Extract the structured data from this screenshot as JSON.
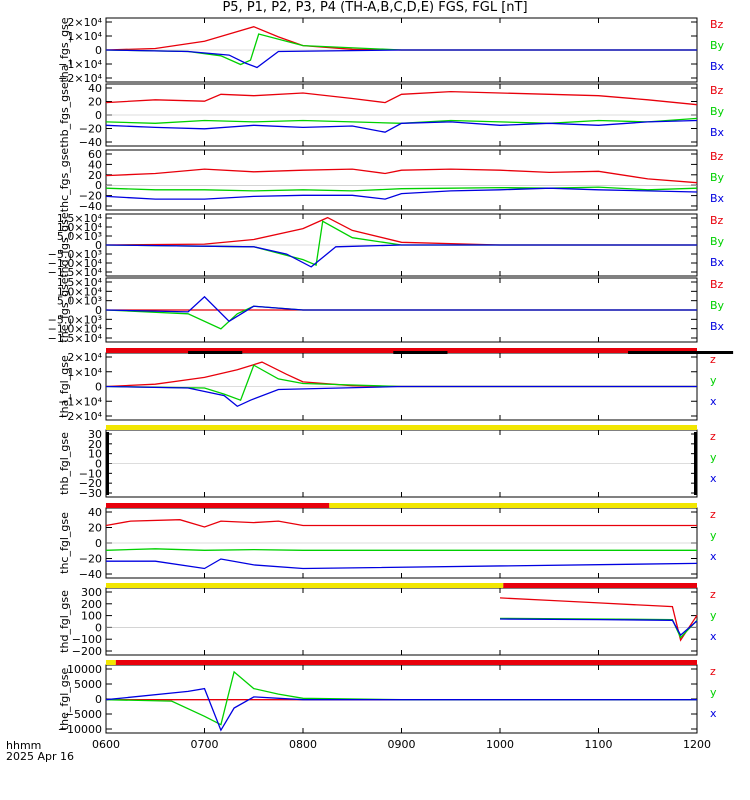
{
  "title": "P5, P1, P2, P3, P4 (TH-A,B,C,D,E) FGS, FGL [nT]",
  "footer": {
    "time_label": "hhmm",
    "date_label": "2025 Apr 16"
  },
  "colors": {
    "red": "#e8000b",
    "green": "#00d000",
    "blue": "#0000e0",
    "yellow": "#f2e600",
    "black": "#000000"
  },
  "chart_data": {
    "type": "line",
    "x_axis": {
      "label": "hhmm",
      "range": [
        "0600",
        "1200"
      ],
      "ticks": [
        "0600",
        "0700",
        "0800",
        "0900",
        "1000",
        "1100",
        "1200"
      ]
    },
    "panels": [
      {
        "ylabel": "tha_fgs_gse",
        "ticks": [
          "2×10⁴",
          "1×10⁴",
          "0",
          "−1×10⁴",
          "−2×10⁴"
        ],
        "ylim": [
          -22000,
          22000
        ],
        "legend": [
          "Bz",
          "By",
          "Bx"
        ],
        "series": [
          {
            "name": "Bz",
            "color": "red",
            "x": [
              "0600",
              "0630",
              "0700",
              "0715",
              "0730",
              "0745",
              "0800",
              "0830",
              "0900",
              "1000",
              "1200"
            ],
            "y": [
              0,
              1000,
              6000,
              11000,
              16000,
              9000,
              3000,
              500,
              0,
              0,
              0
            ]
          },
          {
            "name": "By",
            "color": "green",
            "x": [
              "0600",
              "0650",
              "0710",
              "0722",
              "0728",
              "0733",
              "0800",
              "0900",
              "1200"
            ],
            "y": [
              0,
              -1000,
              -4000,
              -10000,
              -7000,
              11000,
              3000,
              0,
              0
            ]
          },
          {
            "name": "Bx",
            "color": "blue",
            "x": [
              "0600",
              "0650",
              "0715",
              "0725",
              "0732",
              "0745",
              "0900",
              "1200"
            ],
            "y": [
              0,
              -1000,
              -3500,
              -9000,
              -12000,
              -1000,
              0,
              0
            ]
          }
        ]
      },
      {
        "ylabel": "thb_fgs_gse",
        "ticks": [
          "40",
          "20",
          "0",
          "−20",
          "−40"
        ],
        "ylim": [
          -45,
          45
        ],
        "legend": [
          "Bz",
          "By",
          "Bx"
        ],
        "series": [
          {
            "name": "Bz",
            "color": "red",
            "x": [
              "0600",
              "0630",
              "0700",
              "0710",
              "0730",
              "0800",
              "0830",
              "0850",
              "0900",
              "0930",
              "1000",
              "1030",
              "1100",
              "1130",
              "1200"
            ],
            "y": [
              18,
              22,
              20,
              30,
              28,
              32,
              24,
              18,
              30,
              34,
              32,
              30,
              28,
              22,
              15
            ]
          },
          {
            "name": "By",
            "color": "green",
            "x": [
              "0600",
              "0630",
              "0700",
              "0730",
              "0800",
              "0830",
              "0900",
              "0930",
              "1000",
              "1030",
              "1100",
              "1130",
              "1200"
            ],
            "y": [
              -10,
              -12,
              -8,
              -10,
              -8,
              -10,
              -12,
              -8,
              -10,
              -12,
              -8,
              -10,
              -5
            ]
          },
          {
            "name": "Bx",
            "color": "blue",
            "x": [
              "0600",
              "0630",
              "0700",
              "0730",
              "0800",
              "0830",
              "0850",
              "0900",
              "0930",
              "1000",
              "1030",
              "1100",
              "1130",
              "1200"
            ],
            "y": [
              -15,
              -18,
              -20,
              -15,
              -18,
              -16,
              -25,
              -12,
              -10,
              -15,
              -12,
              -15,
              -10,
              -8
            ]
          }
        ]
      },
      {
        "ylabel": "thc_fgs_gse",
        "ticks": [
          "60",
          "40",
          "20",
          "0",
          "−20",
          "−40"
        ],
        "ylim": [
          -45,
          65
        ],
        "legend": [
          "Bz",
          "By",
          "Bx"
        ],
        "series": [
          {
            "name": "Bz",
            "color": "red",
            "x": [
              "0600",
              "0630",
              "0700",
              "0730",
              "0800",
              "0830",
              "0850",
              "0900",
              "0930",
              "1000",
              "1030",
              "1100",
              "1130",
              "1200"
            ],
            "y": [
              18,
              22,
              30,
              25,
              28,
              30,
              22,
              28,
              30,
              28,
              24,
              26,
              12,
              5
            ]
          },
          {
            "name": "By",
            "color": "green",
            "x": [
              "0600",
              "0630",
              "0700",
              "0730",
              "0800",
              "0830",
              "0900",
              "0930",
              "1000",
              "1030",
              "1100",
              "1130",
              "1200"
            ],
            "y": [
              -5,
              -8,
              -8,
              -10,
              -8,
              -10,
              -6,
              -5,
              -4,
              -5,
              -3,
              -8,
              -5
            ]
          },
          {
            "name": "Bx",
            "color": "blue",
            "x": [
              "0600",
              "0630",
              "0700",
              "0730",
              "0800",
              "0830",
              "0850",
              "0900",
              "0930",
              "1000",
              "1030",
              "1100",
              "1130",
              "1200"
            ],
            "y": [
              -20,
              -25,
              -25,
              -20,
              -18,
              -18,
              -25,
              -15,
              -10,
              -8,
              -5,
              -8,
              -10,
              -12
            ]
          }
        ]
      },
      {
        "ylabel": "thd_fgs_gse",
        "ticks": [
          "1.5×10⁴",
          "1.0×10⁴",
          "5.0×10³",
          "0",
          "−5.0×10³",
          "−1.0×10⁴",
          "−1.5×10⁴"
        ],
        "ylim": [
          -17000,
          17000
        ],
        "legend": [
          "Bz",
          "By",
          "Bx"
        ],
        "series": [
          {
            "name": "Bz",
            "color": "red",
            "x": [
              "0600",
              "0700",
              "0730",
              "0800",
              "0815",
              "0830",
              "0900",
              "1000",
              "1200"
            ],
            "y": [
              0,
              500,
              3000,
              9000,
              15000,
              8000,
              1500,
              0,
              0
            ]
          },
          {
            "name": "By",
            "color": "green",
            "x": [
              "0600",
              "0730",
              "0800",
              "0808",
              "0812",
              "0830",
              "0900",
              "1200"
            ],
            "y": [
              0,
              -1000,
              -8000,
              -11000,
              13000,
              4000,
              0,
              0
            ]
          },
          {
            "name": "Bx",
            "color": "blue",
            "x": [
              "0600",
              "0730",
              "0750",
              "0805",
              "0820",
              "0900",
              "1200"
            ],
            "y": [
              0,
              -1000,
              -5000,
              -12000,
              -1000,
              0,
              0
            ]
          }
        ]
      },
      {
        "ylabel": "the_fgs_gse",
        "ticks": [
          "1.5×10⁴",
          "1.0×10⁴",
          "5.0×10³",
          "0",
          "−5.0×10³",
          "−1.0×10⁴",
          "−1.5×10⁴"
        ],
        "ylim": [
          -17000,
          17000
        ],
        "legend": [
          "Bz",
          "By",
          "Bx"
        ],
        "series": [
          {
            "name": "Bz",
            "color": "red",
            "x": [
              "0600",
              "1200"
            ],
            "y": [
              0,
              0
            ]
          },
          {
            "name": "By",
            "color": "green",
            "x": [
              "0600",
              "0650",
              "0710",
              "0720",
              "0730",
              "0800",
              "0900",
              "1200"
            ],
            "y": [
              0,
              -2000,
              -10000,
              -2000,
              2000,
              0,
              0,
              0
            ]
          },
          {
            "name": "Bx",
            "color": "blue",
            "x": [
              "0600",
              "0650",
              "0700",
              "0715",
              "0730",
              "0800",
              "0900",
              "1200"
            ],
            "y": [
              0,
              -1000,
              7000,
              -6000,
              2000,
              0,
              0,
              0
            ]
          }
        ]
      },
      {
        "ylabel": "tha_fgl_gse",
        "ticks": [
          "2×10⁴",
          "1×10⁴",
          "0",
          "−1×10⁴",
          "−2×10⁴"
        ],
        "ylim": [
          -22000,
          22000
        ],
        "legend": [
          "z",
          "y",
          "x"
        ],
        "series": [
          {
            "name": "z",
            "color": "red",
            "x": [
              "0600",
              "0630",
              "0700",
              "0720",
              "0735",
              "0750",
              "0800",
              "0830",
              "0900",
              "1200"
            ],
            "y": [
              0,
              1500,
              6000,
              11000,
              16000,
              8000,
              3000,
              500,
              0,
              0
            ]
          },
          {
            "name": "y",
            "color": "green",
            "x": [
              "0600",
              "0700",
              "0712",
              "0722",
              "0730",
              "0745",
              "0800",
              "0900",
              "1200"
            ],
            "y": [
              0,
              -1000,
              -5000,
              -9000,
              14000,
              5000,
              2000,
              0,
              0
            ]
          },
          {
            "name": "x",
            "color": "blue",
            "x": [
              "0600",
              "0650",
              "0712",
              "0720",
              "0728",
              "0745",
              "0900",
              "1200"
            ],
            "y": [
              0,
              -1000,
              -6000,
              -13000,
              -9000,
              -2000,
              0,
              0
            ]
          }
        ]
      },
      {
        "ylabel": "thb_fgl_gse",
        "ticks": [
          "30",
          "20",
          "10",
          "0",
          "−10",
          "−20",
          "−30"
        ],
        "ylim": [
          -35,
          35
        ],
        "legend": [
          "z",
          "y",
          "x"
        ],
        "series": []
      },
      {
        "ylabel": "thc_fgl_gse",
        "ticks": [
          "40",
          "20",
          "0",
          "−20",
          "−40"
        ],
        "ylim": [
          -48,
          48
        ],
        "legend": [
          "z",
          "y",
          "x"
        ],
        "series": [
          {
            "name": "z",
            "color": "red",
            "x": [
              "0600",
              "0615",
              "0645",
              "0700",
              "0710",
              "0730",
              "0745",
              "0800",
              "1200"
            ],
            "y": [
              24,
              30,
              32,
              22,
              30,
              28,
              30,
              24,
              24
            ]
          },
          {
            "name": "y",
            "color": "green",
            "x": [
              "0600",
              "0630",
              "0700",
              "0730",
              "0800",
              "1200"
            ],
            "y": [
              -10,
              -8,
              -10,
              -9,
              -10,
              -10
            ]
          },
          {
            "name": "x",
            "color": "blue",
            "x": [
              "0600",
              "0630",
              "0700",
              "0710",
              "0730",
              "0800",
              "1200"
            ],
            "y": [
              -25,
              -25,
              -35,
              -22,
              -30,
              -35,
              -28
            ]
          }
        ]
      },
      {
        "ylabel": "thd_fgl_gse",
        "ticks": [
          "300",
          "200",
          "100",
          "0",
          "−100",
          "−200"
        ],
        "ylim": [
          -220,
          320
        ],
        "legend": [
          "z",
          "y",
          "x"
        ],
        "series": [
          {
            "name": "z",
            "color": "red",
            "x": [
              "1000",
              "1030",
              "1100",
              "1130",
              "1145",
              "1150",
              "1200"
            ],
            "y": [
              240,
              220,
              200,
              180,
              170,
              -100,
              100
            ]
          },
          {
            "name": "y",
            "color": "green",
            "x": [
              "1000",
              "1100",
              "1145",
              "1150",
              "1200"
            ],
            "y": [
              75,
              70,
              65,
              -80,
              60
            ]
          },
          {
            "name": "x",
            "color": "blue",
            "x": [
              "1000",
              "1100",
              "1145",
              "1150",
              "1200"
            ],
            "y": [
              70,
              65,
              60,
              -60,
              55
            ]
          }
        ]
      },
      {
        "ylabel": "the_fgl_gse",
        "ticks": [
          "10000",
          "5000",
          "0",
          "−5000",
          "−10000"
        ],
        "ylim": [
          -12000,
          12500
        ],
        "legend": [
          "z",
          "y",
          "x"
        ],
        "series": [
          {
            "name": "z",
            "color": "red",
            "x": [
              "0600",
              "1200"
            ],
            "y": [
              0,
              0
            ]
          },
          {
            "name": "y",
            "color": "green",
            "x": [
              "0600",
              "0640",
              "0700",
              "0710",
              "0718",
              "0730",
              "0745",
              "0800",
              "0900",
              "1200"
            ],
            "y": [
              0,
              -500,
              -6000,
              -9000,
              10000,
              4000,
              2000,
              500,
              0,
              0
            ]
          },
          {
            "name": "x",
            "color": "blue",
            "x": [
              "0600",
              "0650",
              "0700",
              "0710",
              "0718",
              "0730",
              "0800",
              "0900",
              "1200"
            ],
            "y": [
              0,
              3000,
              4000,
              -11000,
              -3000,
              1000,
              0,
              0,
              0
            ]
          }
        ]
      }
    ],
    "mode_bars": [
      {
        "after_panel": 5,
        "segments": [
          {
            "x": [
              "0600",
              "1200"
            ],
            "color": "red"
          },
          {
            "x": [
              "0650",
              "0683"
            ],
            "color": "black"
          },
          {
            "x": [
              "0855",
              "0888"
            ],
            "color": "black"
          },
          {
            "x": [
              "1118",
              "1182"
            ],
            "color": "black"
          }
        ]
      },
      {
        "after_panel": 6,
        "segments": [
          {
            "x": [
              "0600",
              "1200"
            ],
            "color": "yellow"
          }
        ]
      },
      {
        "after_panel": 7,
        "segments": [
          {
            "x": [
              "0600",
              "0776"
            ],
            "color": "red"
          },
          {
            "x": [
              "0776",
              "1200"
            ],
            "color": "yellow"
          }
        ]
      },
      {
        "after_panel": 8,
        "segments": [
          {
            "x": [
              "0600",
              "1002"
            ],
            "color": "yellow"
          },
          {
            "x": [
              "1002",
              "1200"
            ],
            "color": "red"
          }
        ]
      },
      {
        "after_panel": 9,
        "segments": [
          {
            "x": [
              "0600",
              "0606"
            ],
            "color": "yellow"
          },
          {
            "x": [
              "0606",
              "1200"
            ],
            "color": "red"
          }
        ]
      }
    ]
  }
}
